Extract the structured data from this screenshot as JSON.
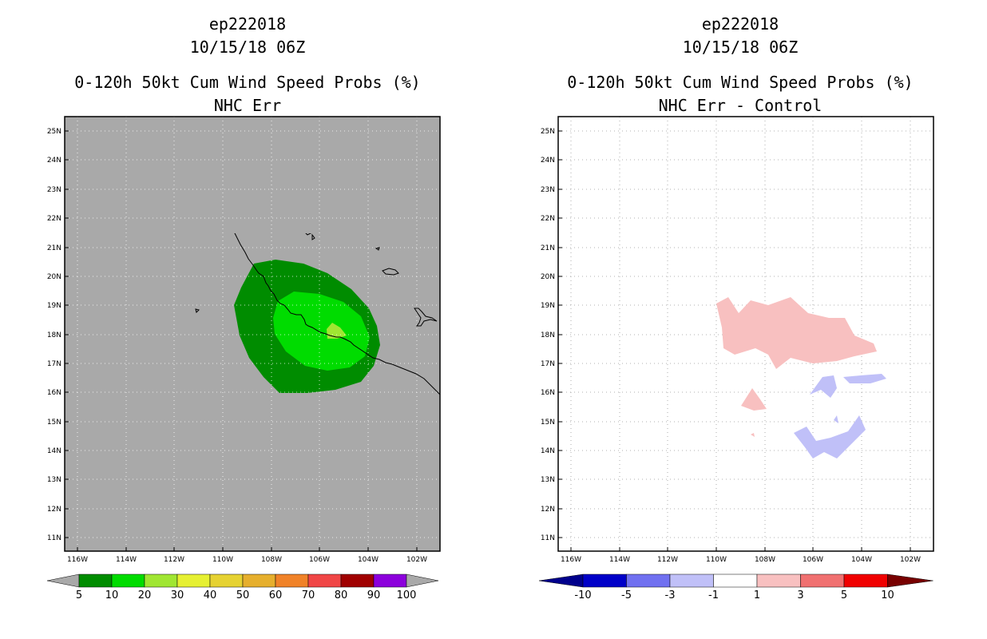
{
  "left_panel": {
    "storm_id": "ep222018",
    "datetime": "10/15/18 06Z",
    "product": "0-120h 50kt Cum Wind Speed Probs (%)",
    "subtitle": "NHC Err",
    "background_color": "#a9a9a9",
    "colorbar": {
      "labels": [
        "5",
        "10",
        "20",
        "30",
        "40",
        "50",
        "60",
        "70",
        "80",
        "90",
        "100"
      ],
      "colors": [
        "#008c00",
        "#00dc00",
        "#a0e632",
        "#e6f032",
        "#e6d232",
        "#e6af2d",
        "#f08228",
        "#f04646",
        "#a00000",
        "#8c00dc"
      ],
      "end_color": "#a9a9a9"
    }
  },
  "right_panel": {
    "storm_id": "ep222018",
    "datetime": "10/15/18 06Z",
    "product": "0-120h 50kt Cum Wind Speed Probs (%)",
    "subtitle": "NHC Err - Control",
    "background_color": "#ffffff",
    "colorbar": {
      "labels": [
        "-10",
        "-5",
        "-3",
        "-1",
        "1",
        "3",
        "5",
        "10"
      ],
      "colors": [
        "#0000c8",
        "#7070f0",
        "#c0c0f8",
        "#ffffff",
        "#f8c0c0",
        "#f07070",
        "#f00000"
      ],
      "end_low": "#00008c",
      "end_high": "#780000"
    }
  },
  "axes": {
    "lat_labels": [
      "25N",
      "24N",
      "23N",
      "22N",
      "21N",
      "20N",
      "19N",
      "18N",
      "17N",
      "16N",
      "15N",
      "14N",
      "13N",
      "12N",
      "11N"
    ],
    "lon_labels": [
      "116W",
      "114W",
      "112W",
      "110W",
      "108W",
      "106W",
      "104W",
      "102W"
    ]
  }
}
